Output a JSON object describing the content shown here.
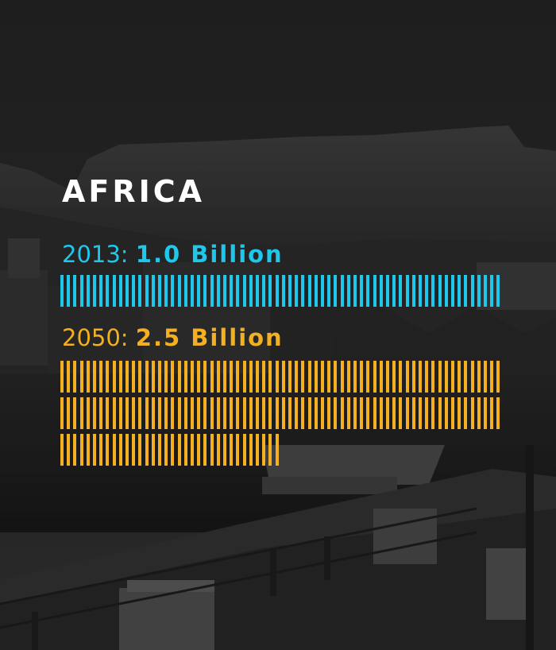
{
  "title": "AFRICA",
  "colors": {
    "accent_2013": "#1ec8ec",
    "accent_2050": "#f4b020",
    "title": "#ffffff"
  },
  "rows": [
    {
      "year_label": "2013:",
      "amount_label": "1.0 Billion",
      "value_billion": 1.0,
      "color": "#1ec8ec"
    },
    {
      "year_label": "2050:",
      "amount_label": "2.5 Billion",
      "value_billion": 2.5,
      "color": "#f4b020"
    }
  ]
}
